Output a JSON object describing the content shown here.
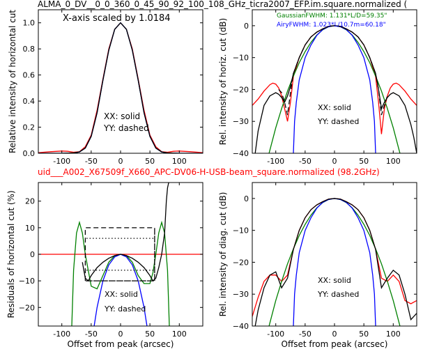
{
  "figure": {
    "title": "ALMA_0_DV__0_0_360_0_45_90_92_100_108_GHz_ticra2007_EFP.im.square.normalized (",
    "subtitle": "uid___A002_X67509f_X660_APC-DV06-H-USB-beam_square.normalized (98.2GHz)",
    "subtitle_color": "#ff0000"
  },
  "chart_data": [
    {
      "id": "horiz_linear",
      "type": "line",
      "xlabel": "",
      "ylabel": "Relative intensity of horizontal cut",
      "xlim": [
        -140,
        140
      ],
      "ylim": [
        0.0,
        1.1
      ],
      "xticks": [
        "-100",
        "-50",
        "0",
        "50",
        "100"
      ],
      "yticks": [
        "0.0",
        "0.2",
        "0.4",
        "0.6",
        "0.8",
        "1.0"
      ],
      "annotations": [
        "X-axis scaled by 1.0184",
        "XX: solid",
        "YY: dashed"
      ],
      "series": [
        {
          "color": "#ff0000",
          "style": "solid",
          "x": [
            -140,
            -120,
            -100,
            -90,
            -80,
            -70,
            -60,
            -50,
            -40,
            -30,
            -20,
            -10,
            0,
            10,
            20,
            30,
            40,
            50,
            60,
            70,
            80,
            90,
            100,
            120,
            140
          ],
          "y": [
            0.005,
            0.012,
            0.017,
            0.015,
            0.008,
            0.012,
            0.05,
            0.14,
            0.33,
            0.57,
            0.8,
            0.95,
            1.0,
            0.95,
            0.8,
            0.57,
            0.33,
            0.14,
            0.05,
            0.012,
            0.008,
            0.015,
            0.017,
            0.012,
            0.005
          ]
        },
        {
          "color": "#008000",
          "style": "solid",
          "x": [
            -140,
            -100,
            -80,
            -70,
            -60,
            -50,
            -40,
            -30,
            -20,
            -10,
            0,
            10,
            20,
            30,
            40,
            50,
            60,
            70,
            80,
            100,
            140
          ],
          "y": [
            0,
            0,
            0.003,
            0.01,
            0.04,
            0.13,
            0.31,
            0.56,
            0.79,
            0.95,
            1.0,
            0.95,
            0.79,
            0.56,
            0.31,
            0.13,
            0.04,
            0.01,
            0.003,
            0,
            0
          ]
        },
        {
          "color": "#0000ff",
          "style": "solid",
          "x": [
            -140,
            -100,
            -80,
            -70,
            -60,
            -50,
            -40,
            -30,
            -20,
            -10,
            0,
            10,
            20,
            30,
            40,
            50,
            60,
            70,
            80,
            100,
            140
          ],
          "y": [
            0,
            0,
            0.002,
            0.01,
            0.04,
            0.13,
            0.31,
            0.56,
            0.79,
            0.95,
            1.0,
            0.95,
            0.79,
            0.56,
            0.31,
            0.13,
            0.04,
            0.01,
            0.002,
            0,
            0
          ]
        },
        {
          "color": "#000000",
          "style": "solid",
          "x": [
            -140,
            -100,
            -80,
            -70,
            -60,
            -50,
            -40,
            -30,
            -20,
            -10,
            0,
            10,
            20,
            30,
            40,
            50,
            60,
            70,
            80,
            100,
            140
          ],
          "y": [
            0,
            0,
            0.003,
            0.01,
            0.04,
            0.13,
            0.31,
            0.56,
            0.79,
            0.95,
            1.0,
            0.95,
            0.79,
            0.56,
            0.31,
            0.13,
            0.04,
            0.01,
            0.003,
            0,
            0
          ]
        }
      ]
    },
    {
      "id": "horiz_db",
      "type": "line",
      "xlabel": "",
      "ylabel": "Rel. intensity of horiz. cut (dB)",
      "xlim": [
        -140,
        140
      ],
      "ylim": [
        -40,
        5
      ],
      "xticks": [
        "-100",
        "-50",
        "0",
        "50",
        "100"
      ],
      "yticks": [
        "0",
        "−10",
        "−20",
        "−30",
        "−40"
      ],
      "annotations": [
        "GaussianFWHM: 1.131*L/D=59.35\"",
        "AiryFWHM: 1.023*L/10.7m=60.18\"",
        "XX: solid",
        "YY: dashed"
      ],
      "annotation_colors": [
        "#008000",
        "#0000ff",
        "#000000",
        "#000000"
      ],
      "series": [
        {
          "color": "#ff0000",
          "style": "solid",
          "x": [
            -140,
            -130,
            -120,
            -110,
            -105,
            -100,
            -95,
            -90,
            -85,
            -80,
            -75,
            -70,
            -60,
            -50,
            -40,
            -30,
            -20,
            -10,
            0,
            10,
            20,
            30,
            40,
            50,
            60,
            70,
            75,
            80,
            85,
            90,
            95,
            100,
            105,
            110,
            120,
            130,
            140
          ],
          "y": [
            -25,
            -23,
            -20.5,
            -18.5,
            -18,
            -18.3,
            -19.5,
            -22,
            -26,
            -30,
            -24,
            -16,
            -10,
            -6,
            -3.5,
            -2,
            -1,
            -0.2,
            0,
            -0.2,
            -1,
            -2,
            -3.5,
            -6,
            -10,
            -16,
            -24,
            -34,
            -26,
            -22,
            -19.5,
            -18.3,
            -18,
            -18.5,
            -20.5,
            -23,
            -25
          ]
        },
        {
          "color": "#008000",
          "style": "solid",
          "x": [
            -120,
            -110,
            -100,
            -90,
            -80,
            -70,
            -60,
            -50,
            -40,
            -30,
            -20,
            -10,
            0,
            10,
            20,
            30,
            40,
            50,
            60,
            70,
            80,
            90,
            100,
            110,
            120
          ],
          "y": [
            -46,
            -39,
            -32,
            -26,
            -20.5,
            -15.8,
            -11.6,
            -8.1,
            -5.2,
            -2.9,
            -1.3,
            -0.3,
            0,
            -0.3,
            -1.3,
            -2.9,
            -5.2,
            -8.1,
            -11.6,
            -15.8,
            -20.5,
            -26,
            -32,
            -39,
            -46
          ]
        },
        {
          "color": "#0000ff",
          "style": "solid",
          "x": [
            -70,
            -68,
            -65,
            -60,
            -50,
            -40,
            -30,
            -20,
            -10,
            0,
            10,
            20,
            30,
            40,
            50,
            60,
            65,
            68,
            70
          ],
          "y": [
            -40,
            -30,
            -24,
            -17,
            -10,
            -6,
            -3,
            -1.2,
            -0.3,
            0,
            -0.3,
            -1.2,
            -3,
            -6,
            -10,
            -17,
            -24,
            -30,
            -40
          ]
        },
        {
          "color": "#000000",
          "style": "solid",
          "x": [
            -135,
            -130,
            -120,
            -110,
            -100,
            -95,
            -90,
            -85,
            -80,
            -75,
            -70,
            -60,
            -50,
            -40,
            -30,
            -20,
            -10,
            0,
            10,
            20,
            30,
            40,
            50,
            60,
            70,
            75,
            80,
            85,
            90,
            95,
            100,
            110,
            120,
            130,
            135,
            140
          ],
          "y": [
            -40,
            -33,
            -25,
            -22,
            -21,
            -21.5,
            -22.5,
            -24,
            -22,
            -19,
            -15,
            -10,
            -6,
            -3.5,
            -2,
            -1,
            -0.2,
            0,
            -0.2,
            -1,
            -2,
            -3.5,
            -6,
            -10,
            -15,
            -20,
            -26,
            -24,
            -22.5,
            -21.5,
            -21,
            -22,
            -25,
            -31,
            -35,
            -40
          ]
        },
        {
          "color": "#000000",
          "style": "dashed",
          "x": [
            -95,
            -90,
            -85,
            -80,
            -75,
            -70,
            -60,
            -50,
            -40,
            -30,
            -20,
            -10,
            0,
            10,
            20,
            30,
            40,
            50,
            60,
            70,
            75,
            80,
            85,
            90
          ],
          "y": [
            -20,
            -21,
            -24,
            -28,
            -21,
            -15,
            -10,
            -6,
            -3.5,
            -2,
            -1,
            -0.2,
            0,
            -0.2,
            -1,
            -2,
            -3.5,
            -6,
            -10,
            -15,
            -20,
            -28,
            -25,
            -22
          ]
        }
      ]
    },
    {
      "id": "horiz_residuals",
      "type": "line",
      "xlabel": "Offset from peak (arcsec)",
      "ylabel": "Residuals of horizontal cut (%)",
      "xlim": [
        -140,
        140
      ],
      "ylim": [
        -27,
        27
      ],
      "xticks": [
        "-100",
        "-50",
        "0",
        "50",
        "100"
      ],
      "yticks": [
        "20",
        "10",
        "0",
        "−10",
        "−20"
      ],
      "annotations": [
        "XX: solid",
        "YY: dashed"
      ],
      "series": [
        {
          "color": "#ff0000",
          "style": "solid",
          "x": [
            -140,
            140
          ],
          "y": [
            0,
            0
          ]
        },
        {
          "color": "#008000",
          "style": "solid",
          "x": [
            -83,
            -80,
            -75,
            -70,
            -65,
            -60,
            -55,
            -50,
            -40,
            -30,
            -20,
            -10,
            0,
            10,
            20,
            30,
            40,
            50,
            55,
            60,
            65,
            70,
            75,
            80,
            83
          ],
          "y": [
            -27,
            -6,
            8,
            12,
            8,
            0,
            -6,
            -12,
            -13,
            -8,
            -3,
            -0.5,
            0,
            -0.5,
            -3,
            -8,
            -11,
            -11,
            -7,
            0,
            8,
            12,
            8,
            -6,
            -27
          ]
        },
        {
          "color": "#0000ff",
          "style": "solid",
          "x": [
            -45,
            -40,
            -30,
            -20,
            -10,
            0,
            10,
            20,
            30,
            40,
            45
          ],
          "y": [
            -27,
            -20,
            -10,
            -4,
            -1,
            0,
            -1,
            -4,
            -10,
            -20,
            -27
          ]
        },
        {
          "color": "#000000",
          "style": "solid",
          "x": [
            -65,
            -60,
            -55,
            -50,
            -40,
            -30,
            -20,
            -10,
            0,
            10,
            20,
            30,
            40,
            50,
            55,
            60,
            65,
            70,
            75,
            78,
            80,
            82
          ],
          "y": [
            -3,
            -9,
            -10,
            -8,
            -5,
            -3,
            -1.5,
            -0.5,
            0,
            -0.5,
            -1.5,
            -3,
            -5,
            -8,
            -10,
            -9,
            -5,
            0,
            8,
            20,
            25,
            27
          ]
        },
        {
          "color": "#000000",
          "style": "dashed",
          "x": [
            -60,
            -60,
            58,
            58,
            -60,
            -60,
            58,
            58
          ],
          "y": [
            -10,
            10,
            10,
            -10,
            -10,
            -10,
            -10,
            10
          ]
        },
        {
          "color": "#000000",
          "style": "dotted",
          "x": [
            -58,
            56
          ],
          "y": [
            6,
            6
          ]
        },
        {
          "color": "#000000",
          "style": "dotted",
          "x": [
            -58,
            56
          ],
          "y": [
            -6,
            -6
          ]
        }
      ]
    },
    {
      "id": "diag_db",
      "type": "line",
      "xlabel": "Offset from peak (arcsec)",
      "ylabel": "Rel. intensity of diag. cut (dB)",
      "xlim": [
        -140,
        140
      ],
      "ylim": [
        -40,
        5
      ],
      "xticks": [
        "-100",
        "-50",
        "0",
        "50",
        "100"
      ],
      "yticks": [
        "0",
        "−10",
        "−20",
        "−30",
        "−40"
      ],
      "annotations": [
        "XX: solid",
        "YY: dashed"
      ],
      "series": [
        {
          "color": "#ff0000",
          "style": "solid",
          "x": [
            -140,
            -130,
            -120,
            -110,
            -100,
            -90,
            -80,
            -70,
            -60,
            -50,
            -40,
            -30,
            -20,
            -10,
            0,
            10,
            20,
            30,
            40,
            50,
            60,
            70,
            80,
            90,
            100,
            110,
            120,
            130,
            140
          ],
          "y": [
            -37,
            -31,
            -26,
            -24,
            -24,
            -26,
            -24,
            -16,
            -10,
            -6,
            -3.5,
            -2,
            -1,
            -0.2,
            0,
            -0.2,
            -1,
            -2,
            -3.5,
            -6,
            -10,
            -16,
            -25,
            -26,
            -24,
            -26,
            -32,
            -33,
            -32
          ]
        },
        {
          "color": "#008000",
          "style": "solid",
          "x": [
            -120,
            -110,
            -100,
            -90,
            -80,
            -70,
            -60,
            -50,
            -40,
            -30,
            -20,
            -10,
            0,
            10,
            20,
            30,
            40,
            50,
            60,
            70,
            80,
            90,
            100,
            110,
            120
          ],
          "y": [
            -46,
            -39,
            -32,
            -26,
            -20.5,
            -15.8,
            -11.6,
            -8.1,
            -5.2,
            -2.9,
            -1.3,
            -0.3,
            0,
            -0.3,
            -1.3,
            -2.9,
            -5.2,
            -8.1,
            -11.6,
            -15.8,
            -20.5,
            -26,
            -32,
            -39,
            -46
          ]
        },
        {
          "color": "#0000ff",
          "style": "solid",
          "x": [
            -70,
            -68,
            -65,
            -60,
            -50,
            -40,
            -30,
            -20,
            -10,
            0,
            10,
            20,
            30,
            40,
            50,
            60,
            65,
            68,
            70
          ],
          "y": [
            -40,
            -30,
            -24,
            -17,
            -10,
            -6,
            -3,
            -1.2,
            -0.3,
            0,
            -0.3,
            -1.2,
            -3,
            -6,
            -10,
            -17,
            -24,
            -30,
            -40
          ]
        },
        {
          "color": "#000000",
          "style": "solid",
          "x": [
            -140,
            -130,
            -120,
            -110,
            -100,
            -90,
            -80,
            -70,
            -60,
            -50,
            -40,
            -30,
            -20,
            -10,
            0,
            10,
            20,
            30,
            40,
            50,
            60,
            70,
            80,
            90,
            100,
            110,
            120,
            130,
            140
          ],
          "y": [
            -45,
            -35,
            -28,
            -24,
            -23,
            -28,
            -25,
            -16,
            -10,
            -6,
            -3.5,
            -2,
            -1,
            -0.2,
            0,
            -0.2,
            -1,
            -2,
            -3.5,
            -6,
            -10,
            -16,
            -28,
            -25,
            -22.5,
            -24,
            -30,
            -38,
            -36
          ]
        }
      ]
    }
  ]
}
